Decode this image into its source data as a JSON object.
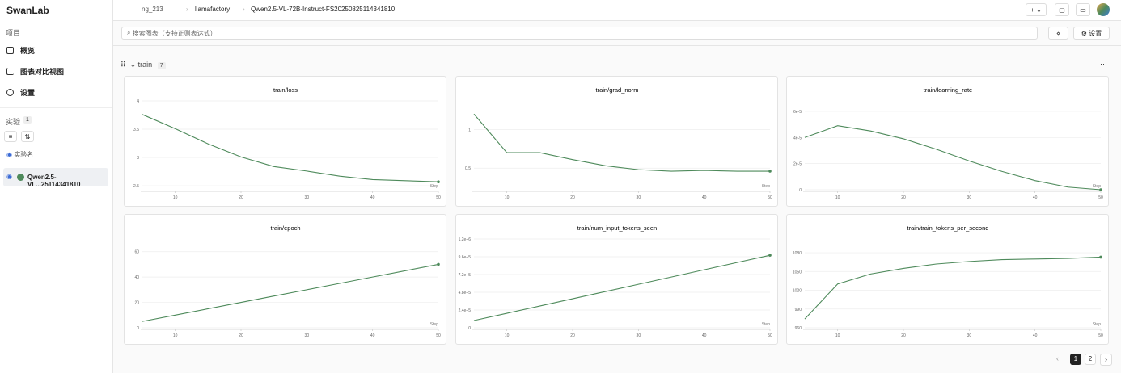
{
  "sidebar": {
    "logo": "SwanLab",
    "project_label": "项目",
    "nav": [
      "概览",
      "图表对比视图",
      "设置"
    ],
    "experiments_label": "实验",
    "experiment_count": 1,
    "column_label": "实验名",
    "experiment": "Qwen2.5-VL...25114341810"
  },
  "breadcrumb": [
    "ng_213",
    "llamafactory",
    "Qwen2.5-VL-72B-Instruct-FS20250825114341810"
  ],
  "search_placeholder": "搜索图表（支持正则表达式）",
  "settings_button": "设置",
  "section": {
    "name": "train",
    "count": 7
  },
  "chart_data": [
    {
      "type": "line",
      "title": "train/loss",
      "xlabel": "Step",
      "x": [
        5,
        10,
        15,
        20,
        25,
        30,
        35,
        40,
        45,
        50
      ],
      "xlim": [
        5,
        50
      ],
      "xticks": [
        10,
        20,
        30,
        40,
        50
      ],
      "ylim": [
        2.43,
        4
      ],
      "yticks": [
        2.5,
        3,
        3.5,
        4
      ],
      "grid": true,
      "series": [
        {
          "color": "#4e8a5b",
          "values": [
            3.76,
            3.51,
            3.24,
            3.01,
            2.84,
            2.76,
            2.67,
            2.61,
            2.59,
            2.57
          ]
        }
      ]
    },
    {
      "type": "line",
      "title": "train/grad_norm",
      "xlabel": "Step",
      "x": [
        5,
        10,
        15,
        20,
        25,
        30,
        35,
        40,
        45,
        50
      ],
      "xlim": [
        5,
        50
      ],
      "xticks": [
        10,
        20,
        30,
        40,
        50
      ],
      "ylim": [
        0.22,
        1.37
      ],
      "yticks": [
        0.5,
        1
      ],
      "grid": true,
      "series": [
        {
          "color": "#4e8a5b",
          "values": [
            1.2,
            0.7,
            0.7,
            0.61,
            0.53,
            0.48,
            0.46,
            0.47,
            0.46,
            0.46
          ]
        }
      ]
    },
    {
      "type": "line",
      "title": "train/learning_rate",
      "xlabel": "Step",
      "x": [
        5,
        10,
        15,
        20,
        25,
        30,
        35,
        40,
        45,
        50
      ],
      "xlim": [
        5,
        50
      ],
      "xticks": [
        10,
        20,
        30,
        40,
        50
      ],
      "ylim": [
        0,
        6.8e-05
      ],
      "yticks": [
        0,
        {
          "value": 2e-05,
          "label": "2e-5"
        },
        {
          "value": 4e-05,
          "label": "4e-5"
        },
        {
          "value": 6e-05,
          "label": "6e-5"
        }
      ],
      "grid": true,
      "series": [
        {
          "color": "#4e8a5b",
          "values": [
            4e-05,
            4.9e-05,
            4.5e-05,
            3.9e-05,
            3.1e-05,
            2.2e-05,
            1.4e-05,
            7e-06,
            2e-06,
            0
          ]
        }
      ]
    },
    {
      "type": "line",
      "title": "train/epoch",
      "xlabel": "Step",
      "x": [
        5,
        10,
        15,
        20,
        25,
        30,
        35,
        40,
        45,
        50
      ],
      "xlim": [
        5,
        50
      ],
      "xticks": [
        10,
        20,
        30,
        40,
        50
      ],
      "ylim": [
        0,
        70
      ],
      "yticks": [
        0,
        20,
        40,
        60
      ],
      "grid": true,
      "series": [
        {
          "color": "#4e8a5b",
          "values": [
            5,
            10,
            15,
            20,
            25,
            30,
            35,
            40,
            45,
            50
          ]
        }
      ]
    },
    {
      "type": "line",
      "title": "train/num_input_tokens_seen",
      "xlabel": "Step",
      "x": [
        5,
        10,
        15,
        20,
        25,
        30,
        35,
        40,
        45,
        50
      ],
      "xlim": [
        5,
        50
      ],
      "xticks": [
        10,
        20,
        30,
        40,
        50
      ],
      "ylim": [
        0,
        1200000
      ],
      "yticks": [
        0,
        {
          "value": 240000,
          "label": "2.4e+5"
        },
        {
          "value": 480000,
          "label": "4.8e+5"
        },
        {
          "value": 720000,
          "label": "7.2e+5"
        },
        {
          "value": 960000,
          "label": "9.6e+5"
        },
        {
          "value": 1200000,
          "label": "1.2e+6"
        }
      ],
      "grid": true,
      "series": [
        {
          "color": "#4e8a5b",
          "values": [
            98000,
            196000,
            294000,
            392000,
            490000,
            588000,
            686000,
            784000,
            882000,
            980000
          ]
        }
      ]
    },
    {
      "type": "line",
      "title": "train/train_tokens_per_second",
      "xlabel": "Step",
      "x": [
        5,
        10,
        15,
        20,
        25,
        30,
        35,
        40,
        45,
        50
      ],
      "xlim": [
        5,
        50
      ],
      "xticks": [
        10,
        20,
        30,
        40,
        50
      ],
      "ylim": [
        960,
        1102
      ],
      "yticks": [
        960,
        990,
        1020,
        1050,
        1080
      ],
      "grid": true,
      "series": [
        {
          "color": "#4e8a5b",
          "values": [
            974,
            1030,
            1046,
            1055,
            1062,
            1066,
            1069,
            1070,
            1071,
            1073
          ]
        }
      ]
    }
  ],
  "pagination": {
    "pages": [
      1,
      2
    ],
    "current": 1
  }
}
